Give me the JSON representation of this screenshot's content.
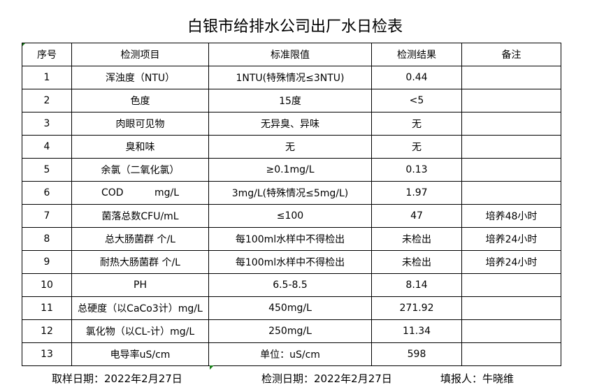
{
  "title": "白银市给排水公司出厂水日检表",
  "headers": [
    "序号",
    "检测项目",
    "标准限值",
    "检测结果",
    "备注"
  ],
  "rows": [
    [
      "1",
      "浑浊度（NTU）",
      "1NTU(特殊情况≤3NTU)",
      "0.44",
      ""
    ],
    [
      "2",
      "色度",
      "15度",
      "<5",
      ""
    ],
    [
      "3",
      "肉眼可见物",
      "无异臭、异味",
      "无",
      ""
    ],
    [
      "4",
      "臭和味",
      "无",
      "无",
      ""
    ],
    [
      "5",
      "余氯（二氧化氯）",
      "≥0.1mg/L",
      "0.13",
      ""
    ],
    [
      "6",
      "COD          mg/L",
      "3mg/L(特殊情况≤5mg/L)",
      "1.97",
      ""
    ],
    [
      "7",
      "菌落总数CFU/mL",
      "≤100",
      "47",
      "培养48小时"
    ],
    [
      "8",
      "总大肠菌群 个/L",
      "每100ml水样中不得检出",
      "未检出",
      "培养24小时"
    ],
    [
      "9",
      "耐热大肠菌群 个/L",
      "每100ml水样中不得检出",
      "未检出",
      "培养24小时"
    ],
    [
      "10",
      "PH",
      "6.5-8.5",
      "8.14",
      ""
    ],
    [
      "11",
      "总硬度（以CaCo3计）mg/L",
      "450mg/L",
      "271.92",
      ""
    ],
    [
      "12",
      "氯化物（以CL-计）mg/L",
      "250mg/L",
      "11.34",
      ""
    ],
    [
      "13",
      "电导率uS/cm",
      "单位：uS/cm",
      "598",
      ""
    ]
  ],
  "footer": {
    "sample_date": "取样日期：2022年2月27日",
    "test_date": "检测日期：2022年2月27日",
    "reporter": "填报人：牛晓维"
  }
}
